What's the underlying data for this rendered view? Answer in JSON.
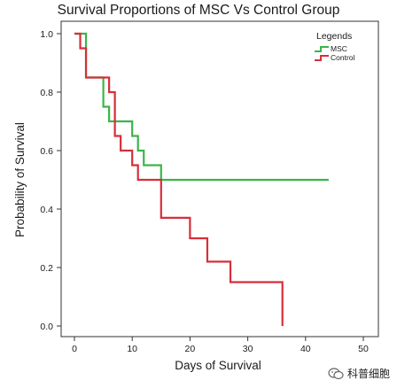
{
  "chart_data": {
    "type": "line",
    "step": true,
    "title": "Survival Proportions of MSC Vs Control Group",
    "xlabel": "Days of Survival",
    "ylabel": "Probability of Survival",
    "xlim": [
      0,
      50
    ],
    "ylim": [
      0,
      1.0
    ],
    "xticks": [
      "0",
      "10",
      "20",
      "30",
      "40",
      "50"
    ],
    "yticks": [
      "0.0",
      "0.2",
      "0.4",
      "0.6",
      "0.8",
      "1.0"
    ],
    "grid": false,
    "legend": {
      "title": "Legends",
      "position": "top-right"
    },
    "series": [
      {
        "name": "MSC",
        "color": "#3cb44b",
        "x": [
          0,
          2,
          5,
          6,
          10,
          11,
          12,
          15,
          44
        ],
        "y": [
          1.0,
          0.85,
          0.75,
          0.7,
          0.65,
          0.6,
          0.55,
          0.5,
          0.5
        ]
      },
      {
        "name": "Control",
        "color": "#d62f3a",
        "x": [
          0,
          1,
          2,
          6,
          7,
          8,
          10,
          11,
          15,
          20,
          23,
          27,
          36
        ],
        "y": [
          1.0,
          0.95,
          0.85,
          0.8,
          0.65,
          0.6,
          0.55,
          0.5,
          0.37,
          0.3,
          0.22,
          0.15,
          0.0
        ]
      }
    ]
  },
  "watermark": {
    "text": "科普细胞",
    "icon": "wechat-icon"
  }
}
